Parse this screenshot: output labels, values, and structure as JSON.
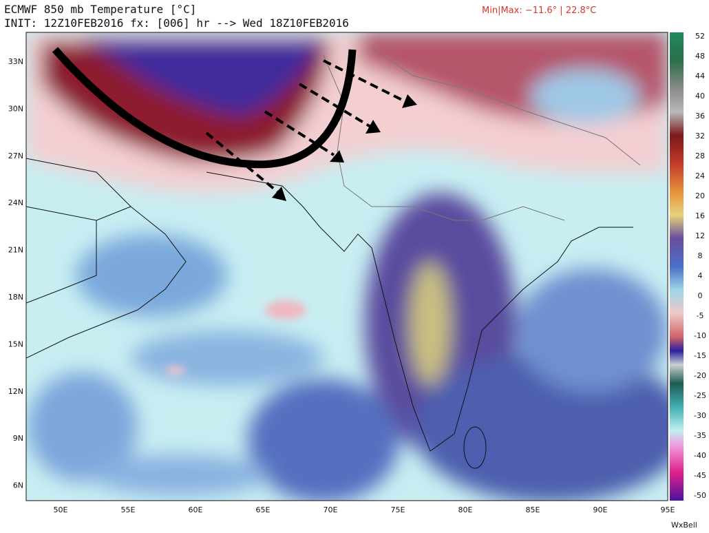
{
  "header": {
    "title": "ECMWF 850 mb Temperature [°C]",
    "init": "INIT: 12Z10FEB2016 fx: [006] hr --> Wed 18Z10FEB2016",
    "minmax": "Min|Max: −11.6° | 22.8°C"
  },
  "map": {
    "lat_labels": [
      "33N",
      "30N",
      "27N",
      "24N",
      "21N",
      "18N",
      "15N",
      "12N",
      "9N",
      "6N"
    ],
    "lon_labels": [
      "50E",
      "55E",
      "60E",
      "65E",
      "70E",
      "75E",
      "80E",
      "85E",
      "90E",
      "95E"
    ]
  },
  "colorbar": {
    "labels": [
      "52",
      "48",
      "44",
      "40",
      "36",
      "32",
      "28",
      "24",
      "20",
      "16",
      "12",
      "8",
      "4",
      "0",
      "-5",
      "-10",
      "-15",
      "-20",
      "-25",
      "-30",
      "-35",
      "-40",
      "-45",
      "-50"
    ]
  },
  "footer": {
    "brand": "WxBell"
  }
}
